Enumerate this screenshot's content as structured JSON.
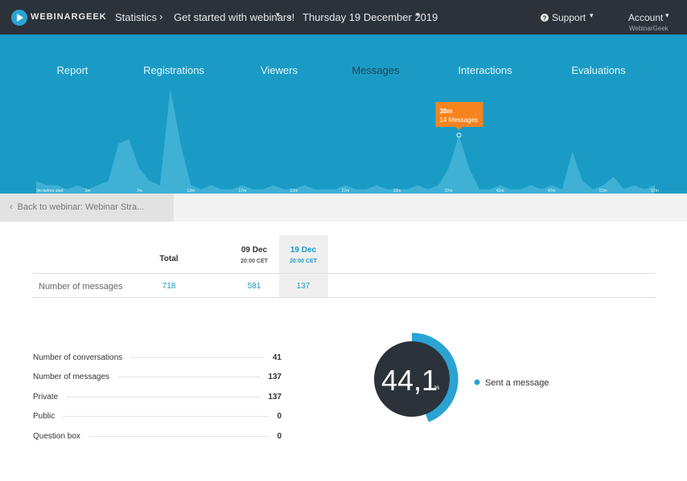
{
  "header": {
    "logo": "WEBINARGEEK",
    "breadcrumbs": [
      "Statistics",
      "Get started with webinars!",
      "Thursday 19 December 2019"
    ],
    "support": "Support",
    "account": "Account",
    "account_sub": "WebinarGeek"
  },
  "tabs": [
    "Report",
    "Registrations",
    "Viewers",
    "Messages",
    "Interactions",
    "Evaluations"
  ],
  "chart_data": {
    "type": "area",
    "color": "#5cc3e2",
    "x": [
      -3,
      -2,
      -1,
      0,
      1,
      2,
      3,
      4,
      5,
      6,
      7,
      8,
      9,
      10,
      11,
      12,
      13,
      14,
      15,
      16,
      17,
      18,
      19,
      20,
      21,
      22,
      23,
      24,
      25,
      26,
      27,
      28,
      29,
      30,
      31,
      32,
      33,
      34,
      35,
      36,
      37,
      38,
      39,
      40,
      41,
      42,
      43,
      44,
      45,
      46,
      47,
      48,
      49,
      50,
      51,
      52,
      53,
      54,
      55,
      56,
      57
    ],
    "values": [
      3,
      2,
      2,
      1,
      2,
      1,
      2,
      3,
      12,
      13,
      6,
      3,
      2,
      25,
      12,
      2,
      1,
      2,
      1,
      1,
      2,
      1,
      1,
      2,
      1,
      1,
      2,
      1,
      1,
      1,
      2,
      1,
      1,
      2,
      1,
      1,
      1,
      2,
      1,
      2,
      6,
      14,
      6,
      1,
      1,
      2,
      1,
      1,
      2,
      1,
      2,
      1,
      10,
      3,
      1,
      2,
      4,
      1,
      2,
      1,
      2
    ],
    "xticks": [
      {
        "value": -3,
        "label": "3m before start"
      },
      {
        "value": 2,
        "label": "2m"
      },
      {
        "value": 7,
        "label": "7m"
      },
      {
        "value": 12,
        "label": "12m"
      },
      {
        "value": 17,
        "label": "17m"
      },
      {
        "value": 22,
        "label": "22m"
      },
      {
        "value": 27,
        "label": "27m"
      },
      {
        "value": 32,
        "label": "32m"
      },
      {
        "value": 37,
        "label": "37m"
      },
      {
        "value": 42,
        "label": "42m"
      },
      {
        "value": 47,
        "label": "47m"
      },
      {
        "value": 52,
        "label": "52m"
      },
      {
        "value": 57,
        "label": "57m"
      }
    ],
    "marker": {
      "x": 38,
      "label": "38m",
      "value": 14,
      "value_label": "14 Messages"
    }
  },
  "back_link": "Back to webinar: Webinar Stra...",
  "table": {
    "columns": [
      {
        "label": "Total"
      },
      {
        "label": "09 Dec",
        "sub": "20:00 CET"
      },
      {
        "label": "19 Dec",
        "sub": "20:00 CET"
      }
    ],
    "rows": [
      {
        "label": "Number of messages",
        "values": [
          718,
          581,
          137
        ]
      }
    ]
  },
  "stats": [
    {
      "label": "Number of conversations",
      "value": 41
    },
    {
      "label": "Number of messages",
      "value": 137
    },
    {
      "label": "Private",
      "value": 137
    },
    {
      "label": "Public",
      "value": 0
    },
    {
      "label": "Question box",
      "value": 0
    }
  ],
  "donut": {
    "value": 44.1,
    "value_label": "44,1",
    "unit": "%",
    "legend": "Sent a message"
  }
}
